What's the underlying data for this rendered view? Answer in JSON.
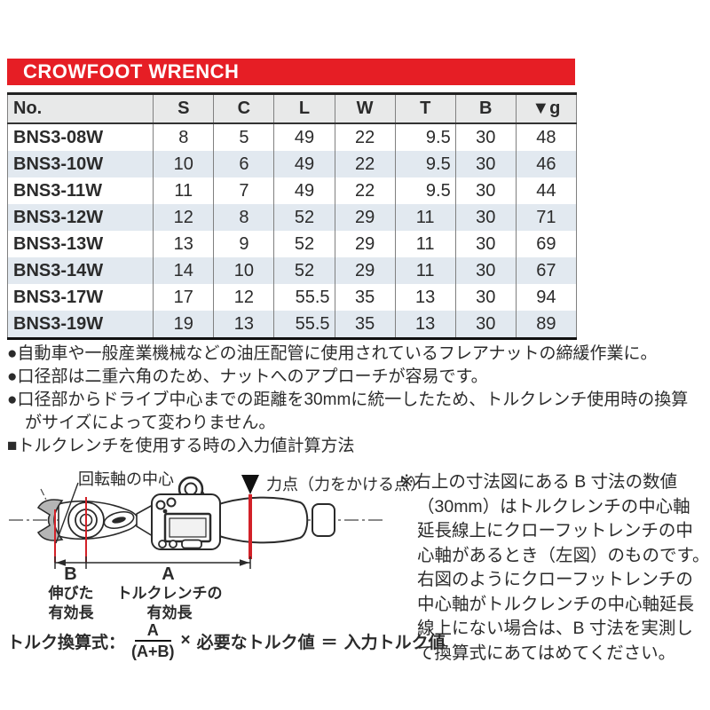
{
  "header": {
    "title": "CROWFOOT WRENCH"
  },
  "table": {
    "columns": [
      "No.",
      "S",
      "C",
      "L",
      "W",
      "T",
      "B",
      "▼g"
    ],
    "rows": [
      [
        "BNS3-08W",
        "8",
        "5",
        "49",
        "22",
        "9.5",
        "30",
        "48"
      ],
      [
        "BNS3-10W",
        "10",
        "6",
        "49",
        "22",
        "9.5",
        "30",
        "46"
      ],
      [
        "BNS3-11W",
        "11",
        "7",
        "49",
        "22",
        "9.5",
        "30",
        "44"
      ],
      [
        "BNS3-12W",
        "12",
        "8",
        "52",
        "29",
        "11",
        "30",
        "71"
      ],
      [
        "BNS3-13W",
        "13",
        "9",
        "52",
        "29",
        "11",
        "30",
        "69"
      ],
      [
        "BNS3-14W",
        "14",
        "10",
        "52",
        "29",
        "11",
        "30",
        "67"
      ],
      [
        "BNS3-17W",
        "17",
        "12",
        "55.5",
        "35",
        "13",
        "30",
        "94"
      ],
      [
        "BNS3-19W",
        "19",
        "13",
        "55.5",
        "35",
        "13",
        "30",
        "89"
      ]
    ]
  },
  "features": {
    "items": [
      {
        "bullet": "●",
        "text": "自動車や一般産業機械などの油圧配管に使用されているフレアナットの締緩作業に。"
      },
      {
        "bullet": "●",
        "text": "口径部は二重六角のため、ナットへのアプローチが容易です。"
      },
      {
        "bullet": "●",
        "text": "口径部からドライブ中心までの距離を30mmに統一したため、トルクレンチ使用時の換算\nがサイズによって変わりません。"
      },
      {
        "bullet": "■",
        "text": "トルクレンチを使用する時の入力値計算方法"
      }
    ]
  },
  "diagram": {
    "labels": {
      "rotation_center": "回転軸の中心",
      "force_point": "力点（力をかける点）",
      "dim_b": "B",
      "dim_a": "A",
      "b_caption": "伸びた\n有効長",
      "a_caption": "トルクレンチの\n有効長"
    },
    "formula": {
      "label": "トルク換算式：",
      "numerator": "A",
      "denominator": "(A+B)",
      "multiply": "×",
      "required": "必要なトルク値",
      "equals": "＝",
      "result": "入力トルク値"
    }
  },
  "note": {
    "text": "※右上の寸法図にある B 寸法の数値\n（30mm）はトルクレンチの中心軸\n延長線上にクローフットレンチの中\n心軸があるとき（左図）のものです。\n右図のようにクローフットレンチの\n中心軸がトルクレンチの中心軸延長\n線上にない場合は、B 寸法を実測し\nて換算式にあてはめてください。"
  },
  "colors": {
    "accent_red": "#e61e25",
    "line_red": "#d22128",
    "header_bg": "#e8e9e9",
    "row_stripe": "#e2e9f0"
  }
}
